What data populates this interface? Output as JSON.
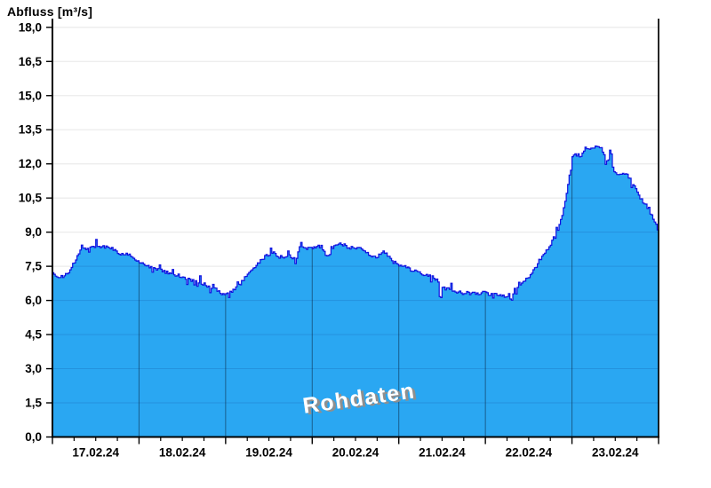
{
  "watermark": "Rohdaten",
  "colors": {
    "area_fill": "#2AA7F2",
    "series_line": "#1010E0",
    "gridline": "#ECECEC",
    "axis": "#000000",
    "day_line_on_fill": "rgba(10,35,60,0.55)",
    "grid_on_fill": "rgba(0,0,80,0.12)",
    "watermark_text": "#FFFFFF",
    "watermark_shadow": "#8F8F8F"
  },
  "chart_data": {
    "type": "area",
    "title": "Abfluss [m³/s]",
    "ylabel": "Abfluss [m³/s]",
    "xlabel": "",
    "ylim": [
      0,
      18
    ],
    "y_step": 1.5,
    "y_tick_labels": [
      "0,0",
      "1,5",
      "3,0",
      "4,5",
      "6,0",
      "7,5",
      "9,0",
      "10,5",
      "12,0",
      "13,5",
      "15,0",
      "16,5",
      "18,0"
    ],
    "x_tick_labels": [
      "17.02.24",
      "18.02.24",
      "19.02.24",
      "20.02.24",
      "21.02.24",
      "22.02.24",
      "23.02.24"
    ],
    "x_span_hours": 168,
    "minor_x_subdivisions_per_day": 4,
    "grid": true,
    "legend": "none",
    "watermark": "Rohdaten",
    "noise_amplitude": 0.07,
    "series": [
      {
        "name": "Rohdaten",
        "x_hours": [
          0.0,
          2.0,
          3.9,
          5.7,
          7.6,
          10.1,
          12.6,
          14.5,
          16.3,
          18.2,
          21.2,
          22.7,
          23.9,
          27.3,
          31.0,
          34.7,
          37.9,
          40.9,
          43.8,
          45.6,
          47.0,
          48.5,
          50.0,
          52.0,
          54.4,
          57.4,
          59.4,
          61.3,
          63.1,
          65.5,
          67.5,
          68.7,
          70.0,
          71.7,
          73.2,
          74.6,
          76.1,
          77.6,
          79.6,
          81.5,
          83.5,
          85.5,
          87.4,
          88.9,
          90.9,
          92.1,
          93.8,
          95.8,
          97.8,
          99.8,
          101.7,
          103.7,
          105.7,
          106.9,
          107.4,
          107.9,
          109.8,
          111.8,
          113.8,
          115.5,
          117.2,
          119.2,
          121.2,
          123.4,
          125.4,
          127.4,
          129.6,
          132.0,
          134.0,
          135.7,
          137.4,
          139.2,
          140.4,
          141.4,
          142.1,
          142.9,
          143.4,
          144.1,
          145.1,
          146.1,
          147.1,
          147.6,
          149.0,
          150.5,
          152.0,
          152.7,
          153.2,
          154.0,
          154.7,
          154.9,
          155.4,
          156.4,
          157.9,
          159.4,
          160.1,
          160.9,
          161.6,
          162.3,
          163.1,
          163.8,
          164.5,
          165.3,
          166.0,
          166.8,
          167.3,
          167.7
        ],
        "values": [
          7.2,
          7.0,
          7.15,
          7.6,
          8.2,
          8.3,
          8.4,
          8.35,
          8.3,
          8.05,
          8.0,
          7.8,
          7.65,
          7.45,
          7.25,
          7.1,
          6.9,
          6.8,
          6.55,
          6.45,
          6.25,
          6.35,
          6.45,
          6.75,
          7.2,
          7.7,
          8.0,
          8.1,
          7.85,
          7.95,
          7.8,
          8.5,
          8.25,
          8.3,
          8.4,
          8.35,
          7.9,
          8.3,
          8.55,
          8.35,
          8.3,
          8.25,
          8.05,
          7.9,
          8.0,
          8.15,
          7.75,
          7.55,
          7.45,
          7.3,
          7.2,
          7.1,
          7.0,
          6.85,
          5.75,
          6.6,
          6.55,
          6.4,
          6.3,
          6.45,
          6.25,
          6.35,
          6.25,
          6.25,
          6.2,
          6.3,
          6.65,
          7.05,
          7.5,
          7.9,
          8.3,
          8.8,
          9.3,
          9.9,
          10.5,
          11.2,
          11.8,
          12.35,
          12.4,
          12.35,
          12.45,
          12.7,
          12.7,
          12.75,
          12.7,
          12.45,
          12.2,
          12.15,
          12.7,
          12.1,
          11.7,
          11.6,
          11.55,
          11.5,
          11.3,
          11.1,
          10.85,
          10.6,
          10.45,
          10.3,
          10.1,
          9.95,
          9.7,
          9.45,
          9.3,
          9.1
        ]
      }
    ]
  }
}
